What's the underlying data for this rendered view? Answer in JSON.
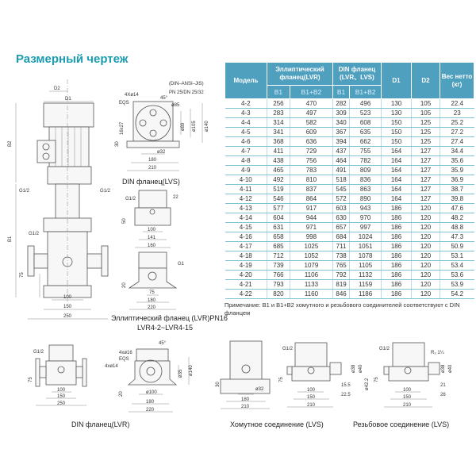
{
  "title": "Размерный чертеж",
  "table": {
    "headers": {
      "model": "Модель",
      "elliptic": "Эллиптический фланец(LVR)",
      "din": "DIN фланец (LVR、LVS)",
      "d1": "D1",
      "d2": "D2",
      "weight": "Вес нетто (кг)",
      "b1": "B1",
      "b1b2": "B1+B2"
    },
    "rows": [
      [
        "4-2",
        "256",
        "470",
        "282",
        "496",
        "130",
        "105",
        "22.4"
      ],
      [
        "4-3",
        "283",
        "497",
        "309",
        "523",
        "130",
        "105",
        "23"
      ],
      [
        "4-4",
        "314",
        "582",
        "340",
        "608",
        "150",
        "125",
        "25.2"
      ],
      [
        "4-5",
        "341",
        "609",
        "367",
        "635",
        "150",
        "125",
        "27.2"
      ],
      [
        "4-6",
        "368",
        "636",
        "394",
        "662",
        "150",
        "125",
        "27.4"
      ],
      [
        "4-7",
        "411",
        "729",
        "437",
        "755",
        "164",
        "127",
        "34.4"
      ],
      [
        "4-8",
        "438",
        "756",
        "464",
        "782",
        "164",
        "127",
        "35.6"
      ],
      [
        "4-9",
        "465",
        "783",
        "491",
        "809",
        "164",
        "127",
        "35.9"
      ],
      [
        "4-10",
        "492",
        "810",
        "518",
        "836",
        "164",
        "127",
        "36.9"
      ],
      [
        "4-11",
        "519",
        "837",
        "545",
        "863",
        "164",
        "127",
        "38.7"
      ],
      [
        "4-12",
        "546",
        "864",
        "572",
        "890",
        "164",
        "127",
        "39.8"
      ],
      [
        "4-13",
        "577",
        "917",
        "603",
        "943",
        "186",
        "120",
        "47.6"
      ],
      [
        "4-14",
        "604",
        "944",
        "630",
        "970",
        "186",
        "120",
        "48.2"
      ],
      [
        "4-15",
        "631",
        "971",
        "657",
        "997",
        "186",
        "120",
        "48.8"
      ],
      [
        "4-16",
        "658",
        "998",
        "684",
        "1024",
        "186",
        "120",
        "47.3"
      ],
      [
        "4-17",
        "685",
        "1025",
        "711",
        "1051",
        "186",
        "120",
        "50.9"
      ],
      [
        "4-18",
        "712",
        "1052",
        "738",
        "1078",
        "186",
        "120",
        "53.1"
      ],
      [
        "4-19",
        "739",
        "1079",
        "765",
        "1105",
        "186",
        "120",
        "53.4"
      ],
      [
        "4-20",
        "766",
        "1106",
        "792",
        "1132",
        "186",
        "120",
        "53.6"
      ],
      [
        "4-21",
        "793",
        "1133",
        "819",
        "1159",
        "186",
        "120",
        "53.9"
      ],
      [
        "4-22",
        "820",
        "1160",
        "846",
        "1186",
        "186",
        "120",
        "54.2"
      ]
    ],
    "note": "Примечание: B1 и B1+B2 хомутного и резьбового соединителей соответствуют с DIN фланцем"
  },
  "drawings": {
    "main": {
      "d2": "D2",
      "d1": "D1",
      "b2": "B2",
      "b1": "B1",
      "g_left": "G1/2",
      "g_right": "G1/2",
      "g_mid": "G1/2",
      "h75": "75",
      "w100": "100",
      "w150": "150",
      "w250": "250"
    },
    "flange_top": {
      "std": "(DIN–ANSI–JIS)",
      "pn": "PN 25/DN 25/32",
      "holes": "4Xø14",
      "eqs": "EQS",
      "angle": "45°",
      "d85": "ø85",
      "d89": "ø89",
      "d105": "ø105",
      "d140": "ø140",
      "slot": "16x27",
      "h30": "30",
      "d32": "ø32",
      "w180": "180",
      "w210": "210",
      "caption": "DIN фланец(LVS)"
    },
    "elliptic": {
      "g12": "G1/2",
      "w22": "22",
      "h50": "50",
      "w100": "100",
      "w141": "141",
      "w160": "160",
      "g1": "G1",
      "h20": "20",
      "w75": "75",
      "w180": "180",
      "w220": "220",
      "caption": "Эллиптический фланец (LVR)PN16",
      "models": "LVR4-2~LVR4-15"
    },
    "din_lvr": {
      "g12": "G1/2",
      "h75": "75",
      "w100": "100",
      "w150": "150",
      "w250": "250",
      "caption": "DIN фланец(LVR)"
    },
    "din_lvr_flange": {
      "holes16": "4xø16",
      "eqs": "EQS",
      "holes14": "4xø14",
      "angle": "45°",
      "d140": "ø140",
      "d35": "ø35",
      "h20": "20",
      "d100": "ø100",
      "w180": "180",
      "w220": "220"
    },
    "clamp": {
      "h30": "30",
      "d32": "ø32",
      "w180": "180",
      "w210": "210",
      "g12": "G1/2",
      "d38": "ø38",
      "d40": "ø40",
      "d422": "ø42.2",
      "h75": "75",
      "s155": "15.5",
      "s225": "22.5",
      "w100": "100",
      "w150": "150",
      "w210b": "210",
      "caption": "Хомутное соединение (LVS)"
    },
    "thread": {
      "g12": "G1/2",
      "r2": "R₂ 1¼",
      "d38": "ø38",
      "d40": "ø40",
      "h75": "75",
      "s21": "21",
      "s26": "26",
      "w100": "100",
      "w150": "150",
      "w210": "210",
      "caption": "Резьбовое соединение (LVS)"
    }
  }
}
